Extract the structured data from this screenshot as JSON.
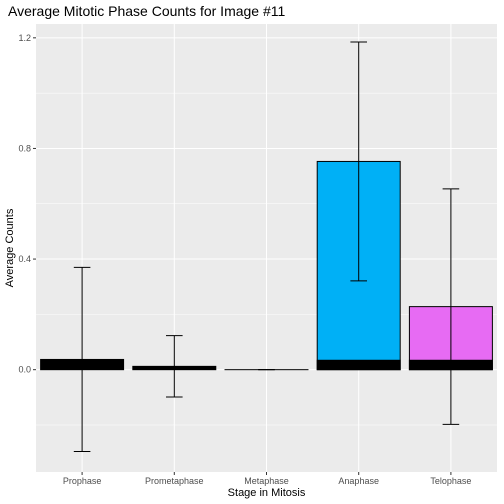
{
  "chart_data": {
    "type": "bar",
    "title": "Average Mitotic Phase Counts for Image #11",
    "xlabel": "Stage in Mitosis",
    "ylabel": "Average Counts",
    "ylim": [
      -0.37,
      1.25
    ],
    "yticks": [
      0.0,
      0.4,
      0.8,
      1.2
    ],
    "ytick_labels": [
      "0.0",
      "0.4",
      "0.8",
      "1.2"
    ],
    "grid": true,
    "background": "#ebebeb",
    "grid_color": "#ffffff",
    "categories": [
      "Prophase",
      "Prometaphase",
      "Metaphase",
      "Anaphase",
      "Telophase"
    ],
    "bars": [
      {
        "category": "Prophase",
        "value": 0.037,
        "fill": "#000000",
        "error_low": -0.296,
        "error_high": 0.37
      },
      {
        "category": "Prometaphase",
        "value": 0.012,
        "fill": "#000000",
        "error_low": -0.099,
        "error_high": 0.123
      },
      {
        "category": "Metaphase",
        "value": 0.0,
        "fill": "#000000",
        "error_low": 0.0,
        "error_high": 0.0
      },
      {
        "category": "Anaphase",
        "value": 0.753,
        "fill": "#00b0f6",
        "error_low": 0.321,
        "error_high": 1.185
      },
      {
        "category": "Telophase",
        "value": 0.228,
        "fill": "#e76bf3",
        "error_low": -0.198,
        "error_high": 0.654
      }
    ],
    "base_segments": [
      {
        "category": "Anaphase",
        "value": 0.034,
        "fill": "#000000"
      },
      {
        "category": "Telophase",
        "value": 0.034,
        "fill": "#000000"
      }
    ]
  }
}
